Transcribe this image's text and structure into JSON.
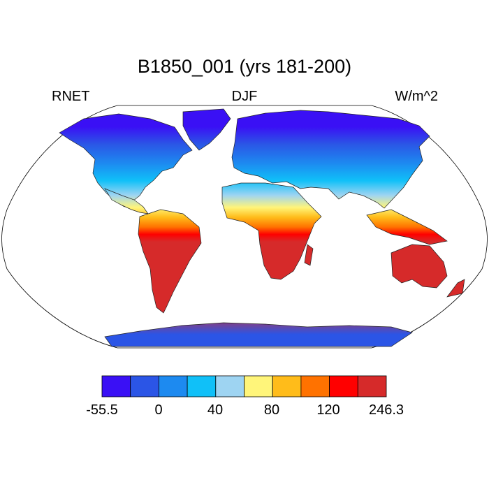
{
  "figure": {
    "title": "B1850_001 (yrs 181-200)",
    "left_label": "RNET",
    "center_label": "DJF",
    "right_label": "W/m^2"
  },
  "colorbar": {
    "colors": [
      "#3a10f5",
      "#2b55e6",
      "#1d8af0",
      "#10c0f8",
      "#9ed4f2",
      "#fff57a",
      "#ffbc1a",
      "#ff7200",
      "#ff0000",
      "#d62a2a"
    ],
    "labels": [
      "-55.5",
      "0",
      "40",
      "80",
      "120",
      "246.3"
    ]
  }
}
